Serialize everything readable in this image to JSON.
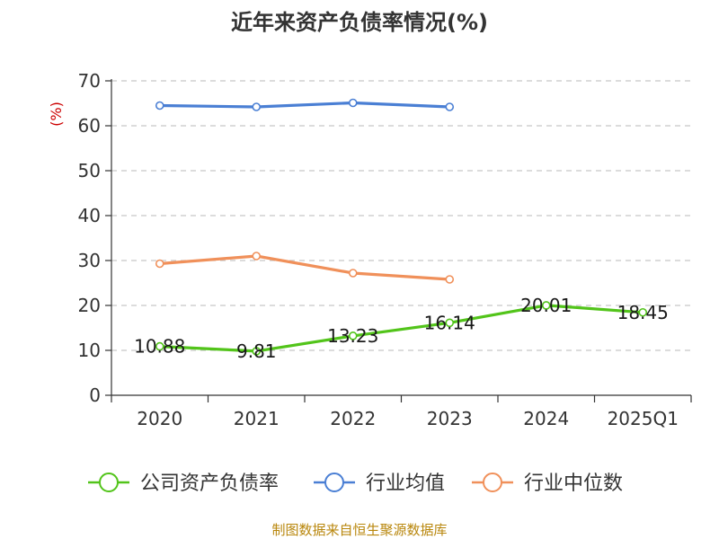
{
  "chart_data": {
    "type": "line",
    "title": "近年来资产负债率情况(%)",
    "ylabel": "(%)",
    "ylim": [
      0,
      70
    ],
    "yticks": [
      0,
      10,
      20,
      30,
      40,
      50,
      60,
      70
    ],
    "categories": [
      "2020",
      "2021",
      "2022",
      "2023",
      "2024",
      "2025Q1"
    ],
    "grid": true,
    "legend_position": "bottom",
    "series": [
      {
        "name": "公司资产负债率",
        "color": "#52c41a",
        "values": [
          10.88,
          9.81,
          13.23,
          16.14,
          20.01,
          18.45
        ],
        "labels": [
          "10.88",
          "9.81",
          "13.23",
          "16.14",
          "20.01",
          "18.45"
        ]
      },
      {
        "name": "行业均值",
        "color": "#4a7fd4",
        "values": [
          64.5,
          64.2,
          65.1,
          64.2,
          null,
          null
        ]
      },
      {
        "name": "行业中位数",
        "color": "#f0905a",
        "values": [
          29.3,
          31.0,
          27.2,
          25.8,
          null,
          null
        ]
      }
    ],
    "source": "制图数据来自恒生聚源数据库"
  }
}
